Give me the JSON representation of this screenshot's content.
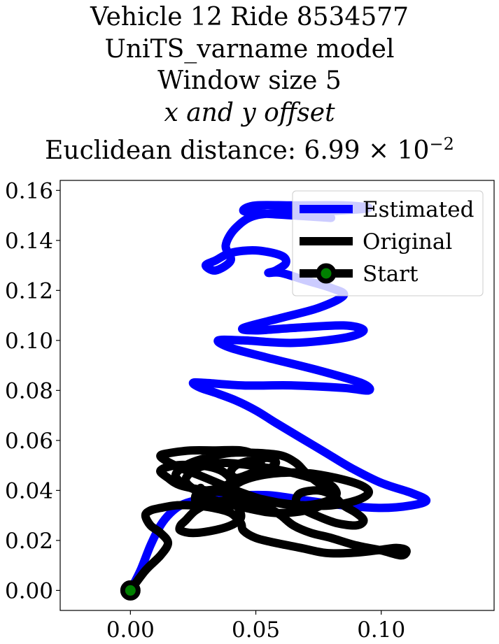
{
  "title_lines": [
    "Vehicle 12 Ride 8534577",
    "UniTS_varname model",
    "Window size 5",
    "x and y offset",
    "Euclidean distance: 6.99 × 10",
    "−2"
  ],
  "chart_data": {
    "type": "line",
    "title": "Vehicle 12 Ride 8534577 UniTS_varname model Window size 5 x and y offset Euclidean distance: 6.99×10^-2",
    "xlabel": "",
    "ylabel": "",
    "xlim": [
      -0.028,
      0.145
    ],
    "ylim": [
      -0.008,
      0.164
    ],
    "xticks": [
      0.0,
      0.05,
      0.1
    ],
    "xtick_labels": [
      "0.00",
      "0.05",
      "0.10"
    ],
    "yticks": [
      0.0,
      0.02,
      0.04,
      0.06,
      0.08,
      0.1,
      0.12,
      0.14,
      0.16
    ],
    "ytick_labels": [
      "0.00",
      "0.02",
      "0.04",
      "0.06",
      "0.08",
      "0.10",
      "0.12",
      "0.14",
      "0.16"
    ],
    "grid": false,
    "legend": {
      "placement": "top-right"
    },
    "series": [
      {
        "name": "Estimated",
        "color": "#0000ff",
        "x": [
          0.0,
          0.004,
          0.008,
          0.012,
          0.016,
          0.02,
          0.026,
          0.034,
          0.044,
          0.056,
          0.07,
          0.085,
          0.1,
          0.112,
          0.118,
          0.112,
          0.1,
          0.088,
          0.078,
          0.068,
          0.058,
          0.05,
          0.042,
          0.034,
          0.028,
          0.025,
          0.03,
          0.045,
          0.065,
          0.085,
          0.095,
          0.092,
          0.075,
          0.055,
          0.04,
          0.035,
          0.045,
          0.065,
          0.085,
          0.093,
          0.085,
          0.065,
          0.05,
          0.045,
          0.06,
          0.075,
          0.085,
          0.08,
          0.07,
          0.06,
          0.055,
          0.058,
          0.062,
          0.06,
          0.05,
          0.04,
          0.034,
          0.03,
          0.034,
          0.04,
          0.038,
          0.042,
          0.05,
          0.065,
          0.085,
          0.095,
          0.085,
          0.065,
          0.05,
          0.045,
          0.05,
          0.065,
          0.08
        ],
        "y": [
          0.0,
          0.008,
          0.018,
          0.026,
          0.031,
          0.034,
          0.036,
          0.037,
          0.038,
          0.038,
          0.036,
          0.034,
          0.033,
          0.034,
          0.036,
          0.039,
          0.043,
          0.049,
          0.055,
          0.061,
          0.067,
          0.072,
          0.076,
          0.079,
          0.081,
          0.083,
          0.083,
          0.082,
          0.082,
          0.081,
          0.08,
          0.083,
          0.088,
          0.093,
          0.097,
          0.1,
          0.1,
          0.099,
          0.101,
          0.104,
          0.106,
          0.105,
          0.104,
          0.105,
          0.109,
          0.113,
          0.118,
          0.121,
          0.124,
          0.127,
          0.127,
          0.128,
          0.131,
          0.134,
          0.136,
          0.135,
          0.132,
          0.13,
          0.128,
          0.132,
          0.138,
          0.145,
          0.15,
          0.151,
          0.152,
          0.153,
          0.154,
          0.154,
          0.154,
          0.152,
          0.151,
          0.15,
          0.149
        ]
      },
      {
        "name": "Original",
        "color": "#000000",
        "x": [
          0.0,
          0.006,
          0.012,
          0.015,
          0.012,
          0.008,
          0.006,
          0.008,
          0.012,
          0.018,
          0.025,
          0.033,
          0.04,
          0.044,
          0.045,
          0.05,
          0.058,
          0.068,
          0.078,
          0.088,
          0.098,
          0.106,
          0.11,
          0.108,
          0.1,
          0.09,
          0.08,
          0.072,
          0.065,
          0.06,
          0.055,
          0.048,
          0.04,
          0.032,
          0.026,
          0.022,
          0.02,
          0.02,
          0.025,
          0.033,
          0.04,
          0.044,
          0.043,
          0.04,
          0.038,
          0.04,
          0.045,
          0.052,
          0.06,
          0.07,
          0.082,
          0.092,
          0.095,
          0.09,
          0.08,
          0.07,
          0.06,
          0.05,
          0.04,
          0.03,
          0.02,
          0.015,
          0.012,
          0.018,
          0.028,
          0.036,
          0.04,
          0.036,
          0.028,
          0.022,
          0.018,
          0.022,
          0.03,
          0.04,
          0.05,
          0.06,
          0.066,
          0.07,
          0.075,
          0.08,
          0.082,
          0.085,
          0.09,
          0.093,
          0.09,
          0.082,
          0.074,
          0.068,
          0.066,
          0.068,
          0.075,
          0.08,
          0.078,
          0.07,
          0.058,
          0.046,
          0.034,
          0.026,
          0.022,
          0.025,
          0.03,
          0.038,
          0.048,
          0.06,
          0.072,
          0.08,
          0.082,
          0.076,
          0.066,
          0.054,
          0.042,
          0.03,
          0.02,
          0.014,
          0.012,
          0.016,
          0.024,
          0.034,
          0.044,
          0.05,
          0.052,
          0.05,
          0.046,
          0.042,
          0.04,
          0.042,
          0.048,
          0.055,
          0.058,
          0.054,
          0.046,
          0.038,
          0.032,
          0.028,
          0.026,
          0.026,
          0.028
        ],
        "y": [
          0.0,
          0.008,
          0.014,
          0.019,
          0.023,
          0.026,
          0.03,
          0.032,
          0.033,
          0.034,
          0.034,
          0.033,
          0.031,
          0.027,
          0.024,
          0.021,
          0.019,
          0.017,
          0.015,
          0.015,
          0.016,
          0.017,
          0.016,
          0.014,
          0.016,
          0.018,
          0.021,
          0.023,
          0.026,
          0.03,
          0.033,
          0.035,
          0.036,
          0.035,
          0.032,
          0.028,
          0.026,
          0.024,
          0.023,
          0.024,
          0.026,
          0.029,
          0.033,
          0.036,
          0.039,
          0.041,
          0.044,
          0.046,
          0.047,
          0.047,
          0.045,
          0.042,
          0.039,
          0.036,
          0.034,
          0.034,
          0.035,
          0.037,
          0.039,
          0.04,
          0.042,
          0.045,
          0.048,
          0.05,
          0.05,
          0.048,
          0.044,
          0.041,
          0.04,
          0.042,
          0.046,
          0.05,
          0.053,
          0.055,
          0.055,
          0.054,
          0.051,
          0.047,
          0.043,
          0.04,
          0.037,
          0.034,
          0.031,
          0.028,
          0.026,
          0.027,
          0.03,
          0.033,
          0.036,
          0.039,
          0.04,
          0.038,
          0.035,
          0.032,
          0.031,
          0.033,
          0.036,
          0.04,
          0.044,
          0.048,
          0.05,
          0.051,
          0.05,
          0.048,
          0.045,
          0.042,
          0.038,
          0.035,
          0.034,
          0.036,
          0.04,
          0.045,
          0.049,
          0.052,
          0.054,
          0.055,
          0.056,
          0.056,
          0.056,
          0.054,
          0.051,
          0.048,
          0.046,
          0.045,
          0.047,
          0.05,
          0.052,
          0.053,
          0.051,
          0.048,
          0.045,
          0.042,
          0.039,
          0.037,
          0.036,
          0.038,
          0.041
        ]
      },
      {
        "name": "Start",
        "color": "#000000",
        "marker_face_color": "#008000",
        "x": [
          0.0
        ],
        "y": [
          0.0
        ]
      }
    ]
  }
}
